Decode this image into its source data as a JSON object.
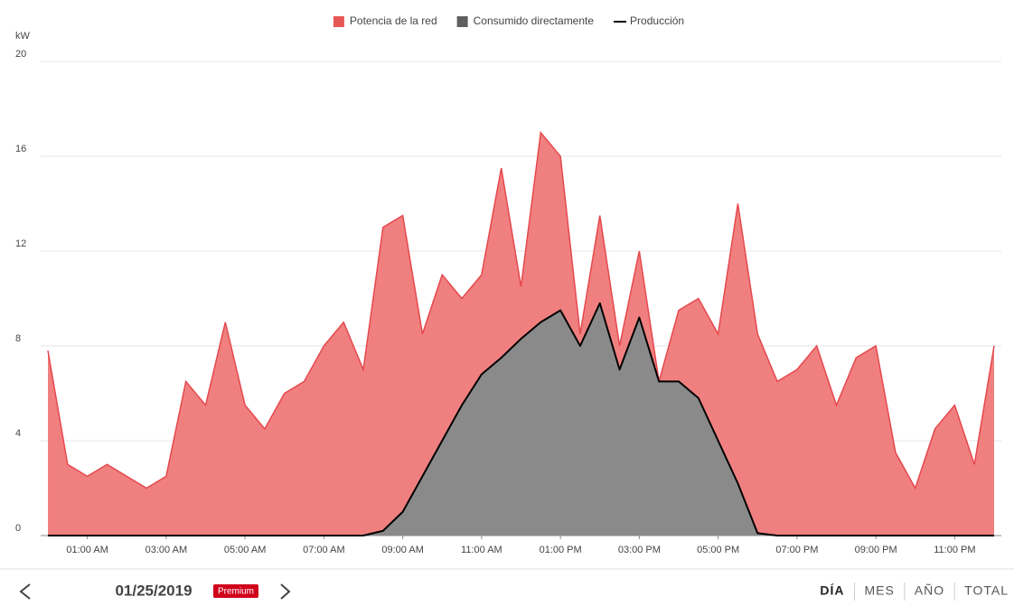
{
  "chart_data": {
    "type": "area",
    "stacked": true,
    "y_unit": "kW",
    "x": [
      0,
      0.5,
      1,
      1.5,
      2,
      2.5,
      3,
      3.5,
      4,
      4.5,
      5,
      5.5,
      6,
      6.5,
      7,
      7.5,
      8,
      8.5,
      9,
      9.5,
      10,
      10.5,
      11,
      11.5,
      12,
      12.5,
      13,
      13.5,
      14,
      14.5,
      15,
      15.5,
      16,
      16.5,
      17,
      17.5,
      18,
      18.5,
      19,
      19.5,
      20,
      20.5,
      21,
      21.5,
      22,
      22.5,
      23,
      23.5,
      24
    ],
    "series": [
      {
        "name": "Potencia de la red",
        "kind": "area",
        "color": "#f08080",
        "stroke": "#e5484d",
        "legend_color": "#e85757",
        "values": [
          7.8,
          3,
          2.5,
          3,
          2.5,
          2,
          2.5,
          6.5,
          5.5,
          9,
          5.5,
          4.5,
          6,
          6.5,
          8,
          9,
          7,
          12.8,
          12.5,
          6,
          7,
          4.5,
          4.2,
          8,
          2.2,
          8,
          6.5,
          0.5,
          3.7,
          1,
          2.8,
          0,
          3,
          4.2,
          4.5,
          11.8,
          8.4,
          6.5,
          7,
          8,
          5.5,
          7.5,
          8,
          3.5,
          2,
          4.5,
          5.5,
          3,
          8
        ]
      },
      {
        "name": "Consumido directamente",
        "kind": "area",
        "color": "#8a8a8b",
        "stroke": "#8a8a8b",
        "legend_color": "#5f5f5f",
        "values": [
          0,
          0,
          0,
          0,
          0,
          0,
          0,
          0,
          0,
          0,
          0,
          0,
          0,
          0,
          0,
          0,
          0,
          0.2,
          1,
          2.5,
          4,
          5.5,
          6.8,
          7.5,
          8.3,
          9,
          9.5,
          8,
          9.8,
          7,
          9.2,
          6.5,
          6.5,
          5.8,
          4,
          2.2,
          0.1,
          0,
          0,
          0,
          0,
          0,
          0,
          0,
          0,
          0,
          0,
          0,
          0
        ]
      },
      {
        "name": "Producción",
        "kind": "line",
        "color": "#000000",
        "values": [
          0,
          0,
          0,
          0,
          0,
          0,
          0,
          0,
          0,
          0,
          0,
          0,
          0,
          0,
          0,
          0,
          0,
          0.2,
          1,
          2.5,
          4,
          5.5,
          6.8,
          7.5,
          8.3,
          9,
          9.5,
          8,
          9.8,
          7,
          9.2,
          6.5,
          6.5,
          5.8,
          4,
          2.2,
          0.1,
          0,
          0,
          0,
          0,
          0,
          0,
          0,
          0,
          0,
          0,
          0,
          0
        ]
      }
    ],
    "xlim": [
      0,
      24
    ],
    "xticks": [
      {
        "value": 1,
        "label": "01:00 AM"
      },
      {
        "value": 3,
        "label": "03:00 AM"
      },
      {
        "value": 5,
        "label": "05:00 AM"
      },
      {
        "value": 7,
        "label": "07:00 AM"
      },
      {
        "value": 9,
        "label": "09:00 AM"
      },
      {
        "value": 11,
        "label": "11:00 AM"
      },
      {
        "value": 13,
        "label": "01:00 PM"
      },
      {
        "value": 15,
        "label": "03:00 PM"
      },
      {
        "value": 17,
        "label": "05:00 PM"
      },
      {
        "value": 19,
        "label": "07:00 PM"
      },
      {
        "value": 21,
        "label": "09:00 PM"
      },
      {
        "value": 23,
        "label": "11:00 PM"
      }
    ],
    "ylim": [
      0,
      20
    ],
    "yticks": [
      0,
      4,
      8,
      12,
      16,
      20
    ],
    "grid": true,
    "legend": "top"
  },
  "footer": {
    "date": "01/25/2019",
    "badge": "Premium",
    "tabs": [
      "DÍA",
      "MES",
      "AÑO",
      "TOTAL"
    ],
    "active_tab": 0
  }
}
